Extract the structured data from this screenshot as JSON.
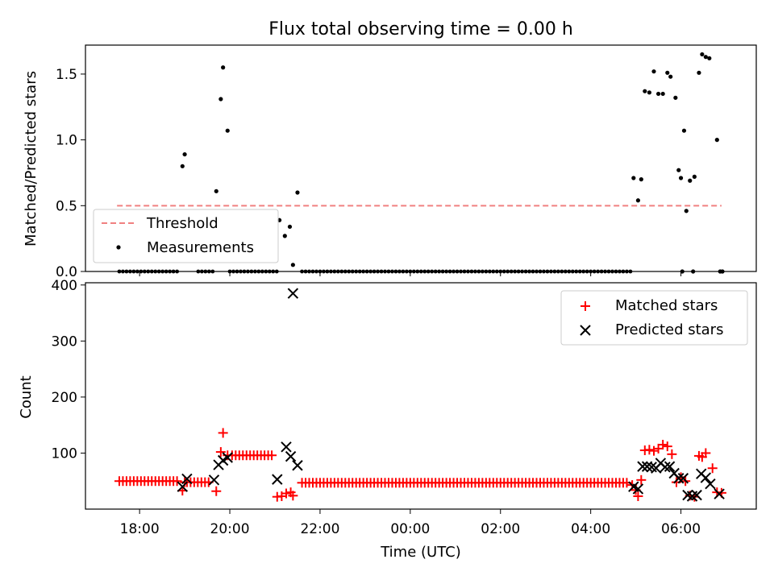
{
  "title": "Flux total observing time = 0.00 h",
  "chart_data": [
    {
      "type": "scatter",
      "panel": "top",
      "ylabel": "Matched/Predicted stars",
      "ylim": [
        0,
        1.72
      ],
      "xlim_hours": [
        16.8,
        31.67
      ],
      "yticks": [
        0.0,
        0.5,
        1.0,
        1.5
      ],
      "ytick_labels": [
        "0.0",
        "0.5",
        "1.0",
        "1.5"
      ],
      "legend": {
        "position": "lower-left",
        "entries": [
          "Threshold",
          "Measurements"
        ]
      },
      "threshold": {
        "name": "Threshold",
        "value": 0.5,
        "x_start": 17.5,
        "x_end": 30.9,
        "color": "#f08080"
      },
      "series": [
        {
          "name": "Measurements",
          "color": "#000000",
          "points": [
            [
              18.95,
              0.8
            ],
            [
              19.0,
              0.89
            ],
            [
              19.7,
              0.61
            ],
            [
              19.8,
              1.31
            ],
            [
              19.85,
              1.55
            ],
            [
              19.95,
              1.07
            ],
            [
              21.1,
              0.39
            ],
            [
              21.22,
              0.27
            ],
            [
              21.33,
              0.34
            ],
            [
              21.4,
              0.05
            ],
            [
              21.5,
              0.6
            ],
            [
              29.2,
              1.37
            ],
            [
              29.3,
              1.36
            ],
            [
              29.4,
              1.52
            ],
            [
              29.5,
              1.35
            ],
            [
              29.6,
              1.35
            ],
            [
              29.7,
              1.51
            ],
            [
              29.77,
              1.48
            ],
            [
              29.88,
              1.32
            ],
            [
              29.95,
              0.77
            ],
            [
              30.0,
              0.71
            ],
            [
              30.07,
              1.07
            ],
            [
              30.12,
              0.46
            ],
            [
              30.2,
              0.69
            ],
            [
              30.3,
              0.72
            ],
            [
              30.4,
              1.51
            ],
            [
              30.47,
              1.65
            ],
            [
              30.55,
              1.63
            ],
            [
              30.63,
              1.62
            ],
            [
              30.8,
              1.0
            ],
            [
              28.95,
              0.71
            ],
            [
              29.05,
              0.54
            ],
            [
              29.12,
              0.7
            ],
            [
              30.03,
              0.0
            ],
            [
              30.27,
              0.0
            ],
            [
              30.87,
              0.0
            ],
            [
              30.92,
              0.0
            ]
          ],
          "zero_baseline_ranges": [
            [
              17.55,
              18.9
            ],
            [
              19.3,
              19.65
            ],
            [
              20.0,
              21.05
            ],
            [
              21.6,
              28.9
            ]
          ]
        }
      ]
    },
    {
      "type": "scatter",
      "panel": "bottom",
      "xlabel": "Time (UTC)",
      "ylabel": "Count",
      "ylim": [
        0,
        404
      ],
      "xlim_hours": [
        16.8,
        31.67
      ],
      "yticks": [
        100,
        200,
        300,
        400
      ],
      "ytick_labels": [
        "100",
        "200",
        "300",
        "400"
      ],
      "xticks_hours": [
        18,
        20,
        22,
        24,
        26,
        28,
        30
      ],
      "xtick_labels": [
        "18:00",
        "20:00",
        "22:00",
        "00:00",
        "02:00",
        "04:00",
        "06:00"
      ],
      "legend": {
        "position": "top-right",
        "entries": [
          "Matched stars",
          "Predicted stars"
        ]
      },
      "series": [
        {
          "name": "Matched stars",
          "marker": "plus",
          "color": "#ff0000",
          "baselines": [
            {
              "x_start": 17.55,
              "x_end": 18.85,
              "value": 50
            },
            {
              "x_start": 19.05,
              "x_end": 19.6,
              "value": 48
            },
            {
              "x_start": 20.05,
              "x_end": 21.0,
              "value": 96
            },
            {
              "x_start": 21.6,
              "x_end": 28.85,
              "value": 47
            }
          ],
          "points": [
            [
              18.95,
              33
            ],
            [
              19.0,
              48
            ],
            [
              19.7,
              32
            ],
            [
              19.8,
              102
            ],
            [
              19.85,
              136
            ],
            [
              19.95,
              96
            ],
            [
              21.05,
              22
            ],
            [
              21.15,
              23
            ],
            [
              21.25,
              28
            ],
            [
              21.35,
              30
            ],
            [
              21.4,
              24
            ],
            [
              28.92,
              43
            ],
            [
              29.0,
              34
            ],
            [
              29.05,
              23
            ],
            [
              29.12,
              52
            ],
            [
              29.2,
              105
            ],
            [
              29.3,
              106
            ],
            [
              29.4,
              104
            ],
            [
              29.5,
              108
            ],
            [
              29.6,
              115
            ],
            [
              29.7,
              112
            ],
            [
              29.8,
              98
            ],
            [
              29.9,
              48
            ],
            [
              30.0,
              57
            ],
            [
              30.1,
              50
            ],
            [
              30.2,
              24
            ],
            [
              30.3,
              22
            ],
            [
              30.4,
              95
            ],
            [
              30.47,
              93
            ],
            [
              30.55,
              100
            ],
            [
              30.7,
              73
            ],
            [
              30.8,
              30
            ],
            [
              30.9,
              29
            ]
          ]
        },
        {
          "name": "Predicted stars",
          "marker": "x",
          "color": "#000000",
          "points": [
            [
              18.95,
              40
            ],
            [
              19.05,
              54
            ],
            [
              19.65,
              52
            ],
            [
              19.75,
              79
            ],
            [
              19.85,
              87
            ],
            [
              19.95,
              92
            ],
            [
              21.05,
              53
            ],
            [
              21.25,
              111
            ],
            [
              21.35,
              94
            ],
            [
              21.4,
              385
            ],
            [
              21.5,
              78
            ],
            [
              28.95,
              40
            ],
            [
              29.05,
              36
            ],
            [
              29.15,
              76
            ],
            [
              29.25,
              76
            ],
            [
              29.35,
              75
            ],
            [
              29.45,
              73
            ],
            [
              29.55,
              82
            ],
            [
              29.65,
              75
            ],
            [
              29.75,
              76
            ],
            [
              29.85,
              64
            ],
            [
              29.95,
              55
            ],
            [
              30.05,
              55
            ],
            [
              30.15,
              25
            ],
            [
              30.25,
              23
            ],
            [
              30.35,
              25
            ],
            [
              30.45,
              63
            ],
            [
              30.55,
              56
            ],
            [
              30.65,
              45
            ],
            [
              30.85,
              27
            ]
          ]
        }
      ]
    }
  ]
}
